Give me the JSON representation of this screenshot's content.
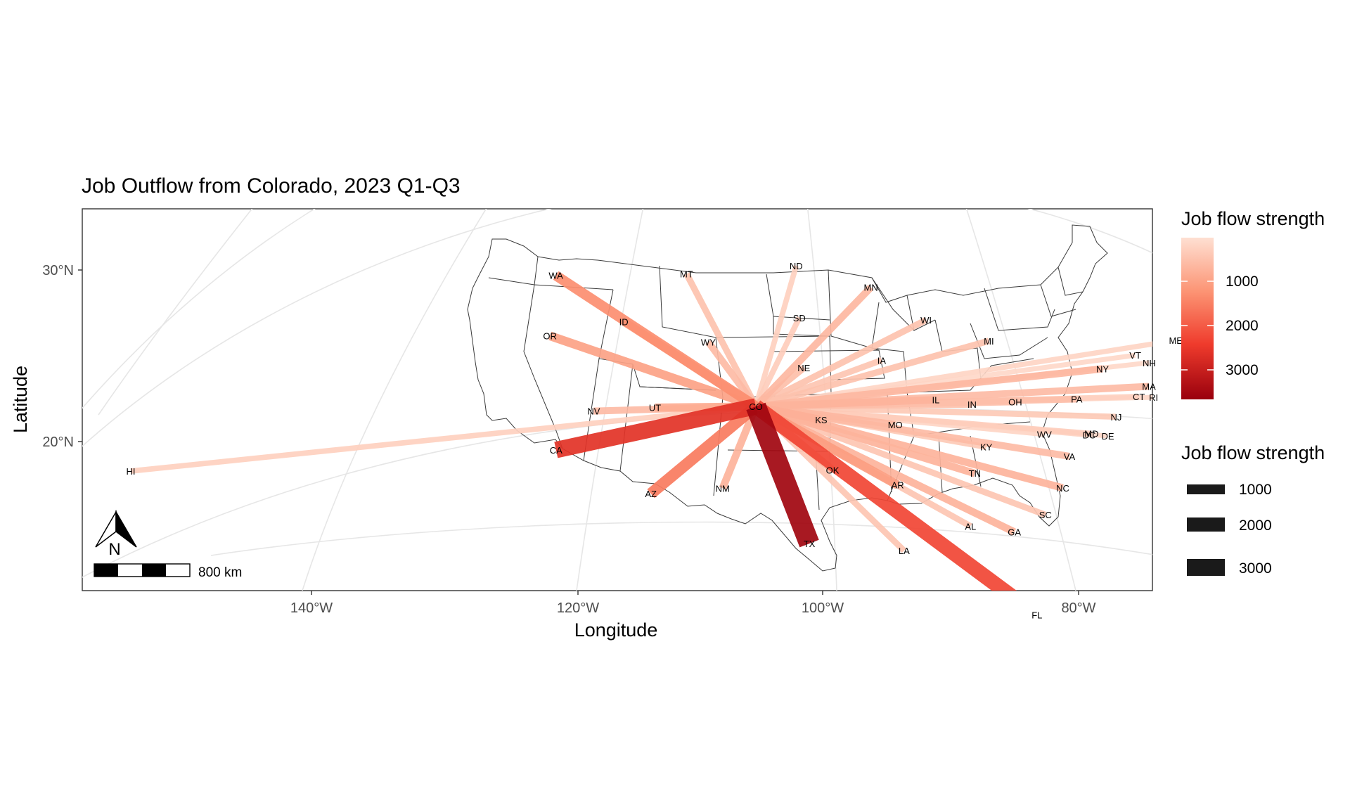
{
  "title": "Job Outflow from Colorado, 2023 Q1-Q3",
  "xlabel": "Longitude",
  "ylabel": "Latitude",
  "x_ticks": [
    "140°W",
    "120°W",
    "100°W",
    "80°W"
  ],
  "y_ticks": [
    "30°N",
    "20°N"
  ],
  "legend_color": {
    "title": "Job flow strength",
    "labels": [
      "1000",
      "2000",
      "3000"
    ],
    "colors": [
      "#fee0d2",
      "#fc9272",
      "#ef3b2c",
      "#99000d"
    ]
  },
  "legend_size": {
    "title": "Job flow strength",
    "labels": [
      "1000",
      "2000",
      "3000"
    ]
  },
  "north_arrow": {
    "label": "N"
  },
  "scale_bar": {
    "label": "800 km"
  },
  "chart_data": {
    "type": "map",
    "title": "Job Outflow from Colorado, 2023 Q1-Q3",
    "xlabel": "Longitude",
    "ylabel": "Latitude",
    "origin": "CO",
    "flows": [
      {
        "state": "TX",
        "lon": -99.3,
        "lat": 31.3,
        "value": 3400
      },
      {
        "state": "CA",
        "lon": -119.4,
        "lat": 37.2,
        "value": 2600
      },
      {
        "state": "FL",
        "lon": -82.0,
        "lat": 28.0,
        "value": 2300
      },
      {
        "state": "AZ",
        "lon": -111.7,
        "lat": 34.3,
        "value": 1650
      },
      {
        "state": "WA",
        "lon": -120.5,
        "lat": 47.4,
        "value": 1400
      },
      {
        "state": "AR",
        "lon": -92.4,
        "lat": 34.9,
        "value": 1200
      },
      {
        "state": "OR",
        "lon": -120.6,
        "lat": 43.9,
        "value": 1150
      },
      {
        "state": "ID",
        "lon": -114.6,
        "lat": 44.4,
        "value": 1050
      },
      {
        "state": "UT",
        "lon": -111.7,
        "lat": 39.3,
        "value": 1000
      },
      {
        "state": "OK",
        "lon": -97.5,
        "lat": 35.6,
        "value": 950
      },
      {
        "state": "KS",
        "lon": -98.4,
        "lat": 38.5,
        "value": 950
      },
      {
        "state": "NM",
        "lon": -106.1,
        "lat": 34.5,
        "value": 900
      },
      {
        "state": "TN",
        "lon": -86.3,
        "lat": 35.9,
        "value": 900
      },
      {
        "state": "GA",
        "lon": -83.4,
        "lat": 32.7,
        "value": 900
      },
      {
        "state": "IL",
        "lon": -89.2,
        "lat": 40.0,
        "value": 900
      },
      {
        "state": "NC",
        "lon": -79.4,
        "lat": 35.6,
        "value": 900
      },
      {
        "state": "MO",
        "lon": -92.5,
        "lat": 38.4,
        "value": 850
      },
      {
        "state": "MN",
        "lon": -94.3,
        "lat": 46.3,
        "value": 850
      },
      {
        "state": "NY",
        "lon": -75.5,
        "lat": 42.9,
        "value": 850
      },
      {
        "state": "WY",
        "lon": -107.6,
        "lat": 43.0,
        "value": 800
      },
      {
        "state": "NV",
        "lon": -116.6,
        "lat": 39.3,
        "value": 800
      },
      {
        "state": "VA",
        "lon": -78.7,
        "lat": 37.5,
        "value": 800
      },
      {
        "state": "MA",
        "lon": -71.8,
        "lat": 42.3,
        "value": 800
      },
      {
        "state": "NE",
        "lon": -99.8,
        "lat": 41.5,
        "value": 750
      },
      {
        "state": "PA",
        "lon": -77.8,
        "lat": 40.9,
        "value": 750
      },
      {
        "state": "OH",
        "lon": -82.8,
        "lat": 40.3,
        "value": 750
      },
      {
        "state": "MT",
        "lon": -109.6,
        "lat": 47.0,
        "value": 700
      },
      {
        "state": "IN",
        "lon": -86.3,
        "lat": 39.9,
        "value": 700
      },
      {
        "state": "WI",
        "lon": -89.8,
        "lat": 44.6,
        "value": 700
      },
      {
        "state": "MI",
        "lon": -84.7,
        "lat": 43.7,
        "value": 700
      },
      {
        "state": "SC",
        "lon": -80.9,
        "lat": 33.9,
        "value": 650
      },
      {
        "state": "AL",
        "lon": -86.8,
        "lat": 32.8,
        "value": 650
      },
      {
        "state": "LA",
        "lon": -92.0,
        "lat": 31.1,
        "value": 650
      },
      {
        "state": "IA",
        "lon": -93.5,
        "lat": 42.1,
        "value": 650
      },
      {
        "state": "NJ",
        "lon": -74.7,
        "lat": 40.2,
        "value": 600
      },
      {
        "state": "KY",
        "lon": -85.3,
        "lat": 37.5,
        "value": 600
      },
      {
        "state": "SD",
        "lon": -100.2,
        "lat": 44.4,
        "value": 550
      },
      {
        "state": "MD",
        "lon": -76.8,
        "lat": 39.0,
        "value": 550
      },
      {
        "state": "ND",
        "lon": -100.5,
        "lat": 47.4,
        "value": 500
      },
      {
        "state": "CT",
        "lon": -72.7,
        "lat": 41.6,
        "value": 500
      },
      {
        "state": "HI",
        "lon": -157.9,
        "lat": 21.3,
        "value": 500
      },
      {
        "state": "ME",
        "lon": -69.2,
        "lat": 45.3,
        "value": 450
      },
      {
        "state": "WV",
        "lon": -80.6,
        "lat": 38.6,
        "value": 450
      },
      {
        "state": "DC",
        "lon": -77.0,
        "lat": 38.9,
        "value": 450
      },
      {
        "state": "VT",
        "lon": -72.7,
        "lat": 44.0,
        "value": 400
      },
      {
        "state": "NH",
        "lon": -71.6,
        "lat": 43.7,
        "value": 400
      },
      {
        "state": "DE",
        "lon": -75.5,
        "lat": 39.0,
        "value": 400
      },
      {
        "state": "RI",
        "lon": -71.5,
        "lat": 41.7,
        "value": 400
      }
    ]
  }
}
